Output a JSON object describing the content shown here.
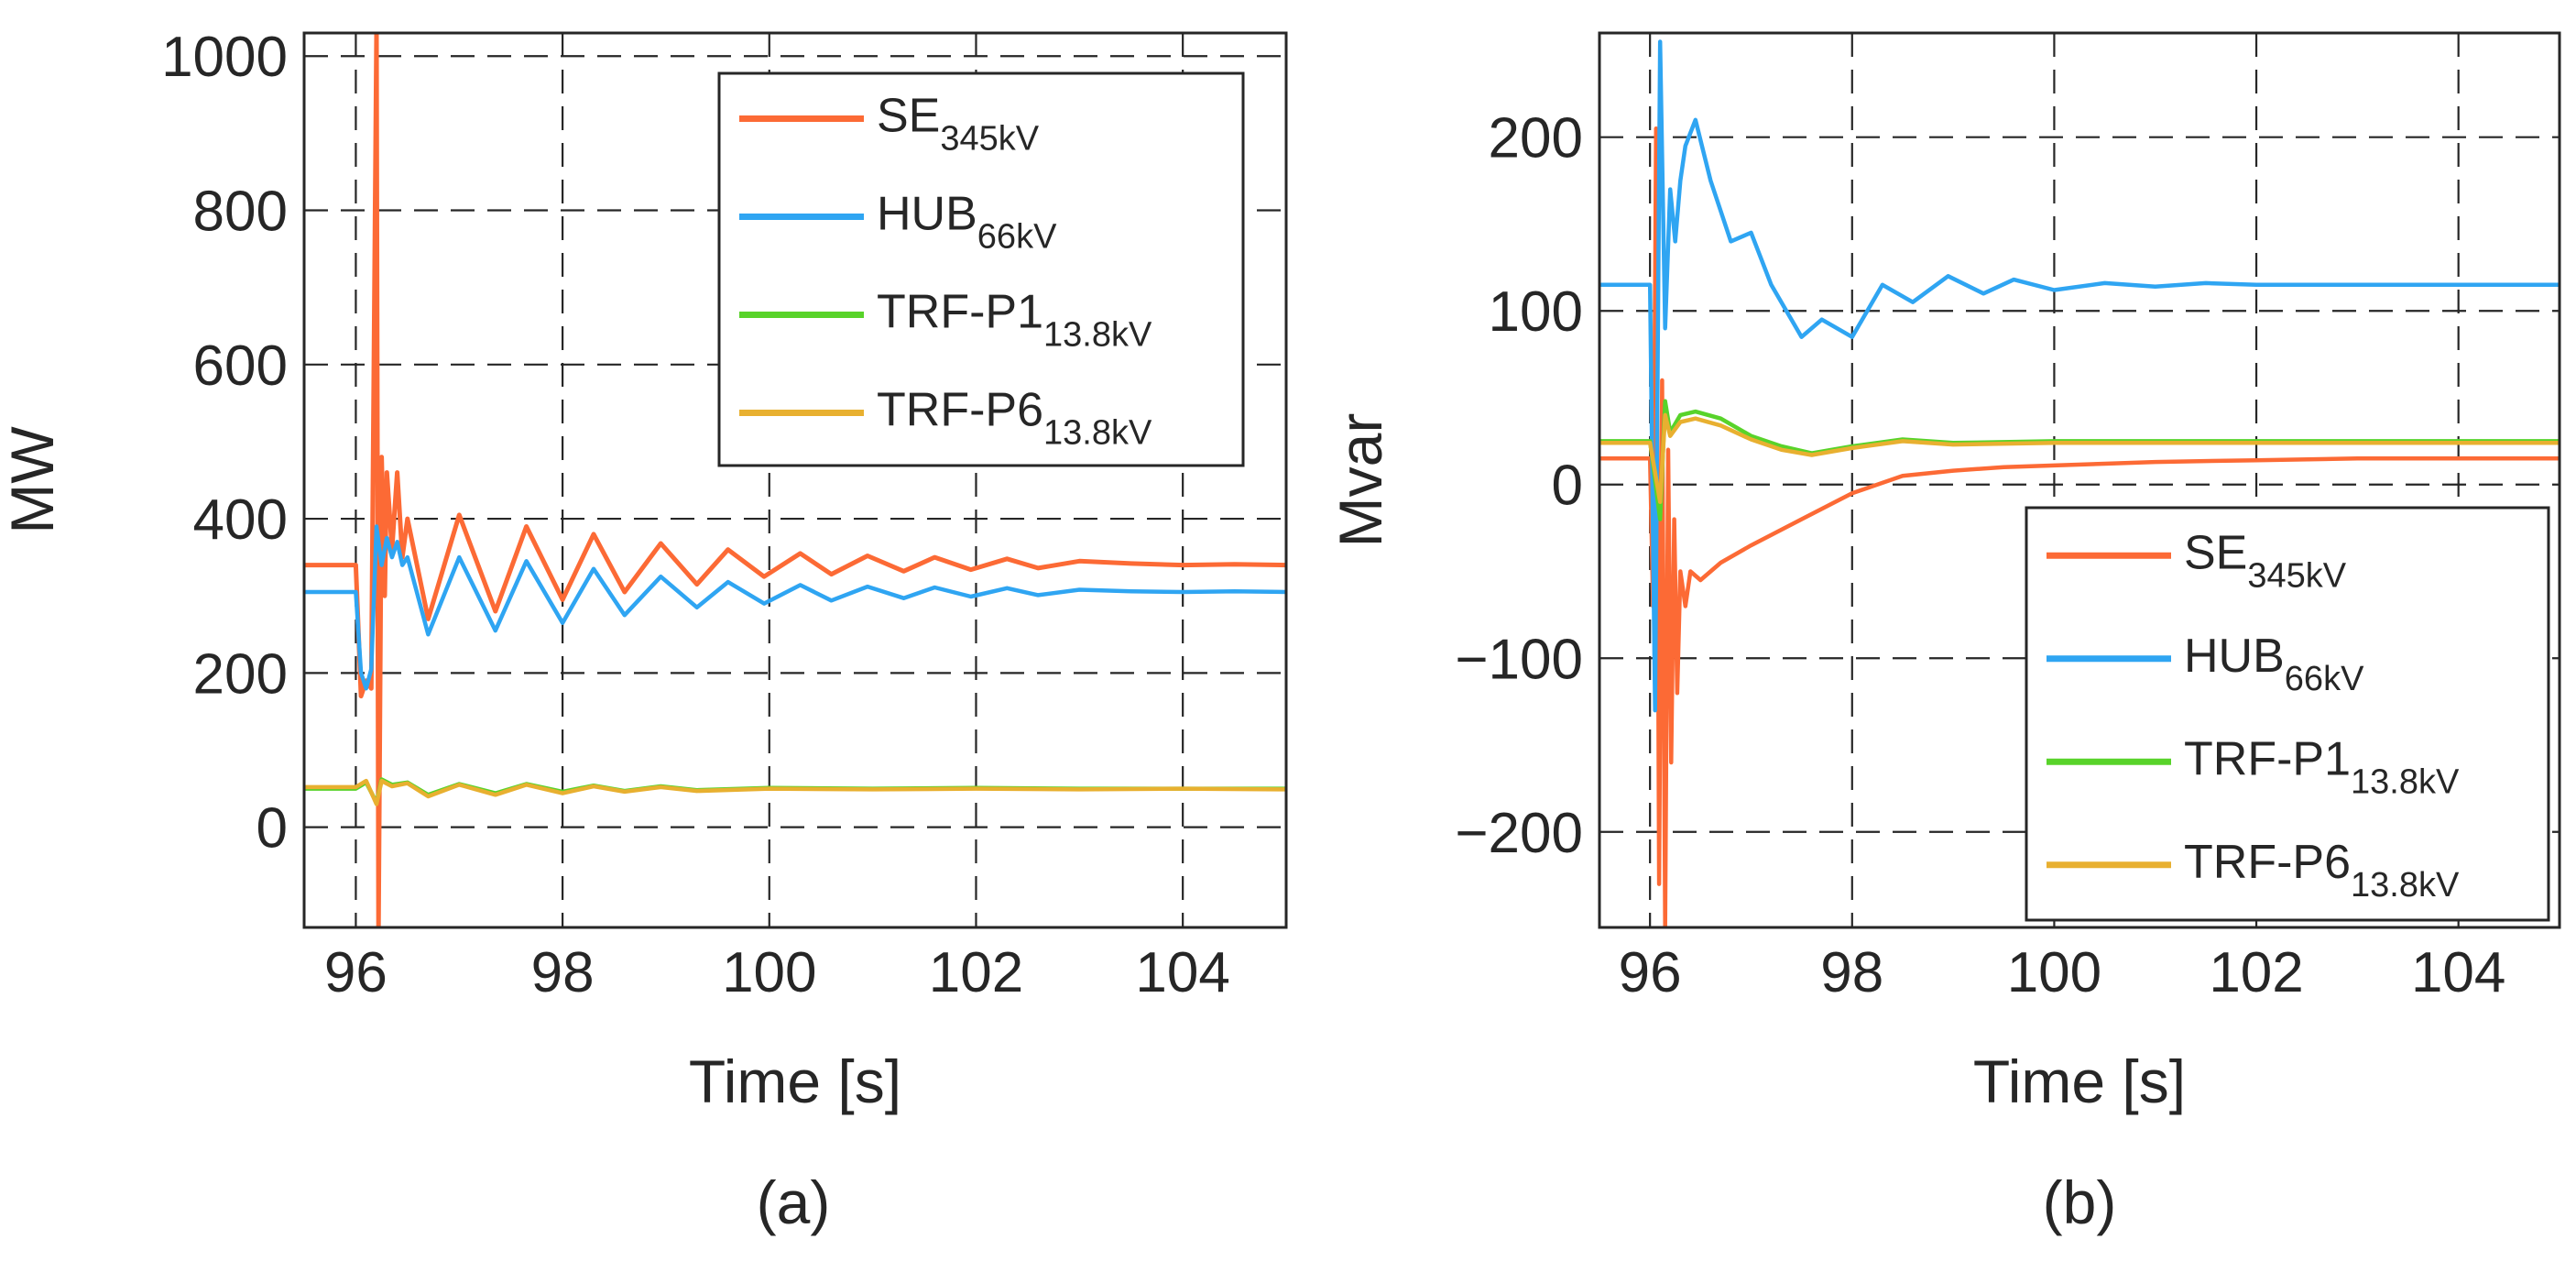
{
  "chart_data": [
    {
      "type": "line",
      "panel_label": "(a)",
      "xlabel": "Time [s]",
      "ylabel": "MW",
      "xlim": [
        95.5,
        105
      ],
      "ylim": [
        -130,
        1030
      ],
      "xticks": [
        96,
        98,
        100,
        102,
        104
      ],
      "xtick_labels": [
        "96",
        "98",
        "100",
        "102",
        "104"
      ],
      "yticks": [
        0,
        200,
        400,
        600,
        800,
        1000
      ],
      "ytick_labels": [
        "0",
        "200",
        "400",
        "600",
        "800",
        "1000"
      ],
      "grid": true,
      "legend_position": "top-right",
      "series": [
        {
          "name": "SE",
          "name_sub": "345kV",
          "color": "#fc6a35",
          "x": [
            95.5,
            96.0,
            96.05,
            96.1,
            96.15,
            96.2,
            96.22,
            96.25,
            96.28,
            96.3,
            96.35,
            96.4,
            96.45,
            96.5,
            96.7,
            97.0,
            97.35,
            97.65,
            98.0,
            98.3,
            98.6,
            98.95,
            99.3,
            99.6,
            99.95,
            100.3,
            100.6,
            100.95,
            101.3,
            101.6,
            101.95,
            102.3,
            102.6,
            103.0,
            103.5,
            104.0,
            104.5,
            105.0
          ],
          "y": [
            340,
            340,
            170,
            190,
            180,
            1030,
            -130,
            480,
            300,
            460,
            360,
            460,
            350,
            400,
            270,
            405,
            280,
            390,
            295,
            380,
            305,
            368,
            315,
            360,
            325,
            355,
            328,
            352,
            332,
            350,
            334,
            348,
            336,
            345,
            342,
            340,
            341,
            340
          ]
        },
        {
          "name": "HUB",
          "name_sub": "66kV",
          "color": "#2fa5f2",
          "x": [
            95.5,
            96.0,
            96.05,
            96.1,
            96.15,
            96.2,
            96.25,
            96.3,
            96.35,
            96.4,
            96.45,
            96.5,
            96.7,
            97.0,
            97.35,
            97.65,
            98.0,
            98.3,
            98.6,
            98.95,
            99.3,
            99.6,
            99.95,
            100.3,
            100.6,
            100.95,
            101.3,
            101.6,
            101.95,
            102.3,
            102.6,
            103.0,
            103.5,
            104.0,
            104.5,
            105.0
          ],
          "y": [
            305,
            305,
            200,
            180,
            205,
            390,
            340,
            375,
            350,
            370,
            340,
            350,
            250,
            350,
            255,
            345,
            265,
            335,
            275,
            325,
            285,
            318,
            290,
            314,
            294,
            312,
            297,
            311,
            299,
            310,
            301,
            308,
            306,
            305,
            306,
            305
          ]
        },
        {
          "name": "TRF-P1",
          "name_sub": "13.8kV",
          "color": "#58d32a",
          "x": [
            95.5,
            96.0,
            96.1,
            96.2,
            96.25,
            96.35,
            96.5,
            96.7,
            97.0,
            97.35,
            97.65,
            98.0,
            98.3,
            98.6,
            98.95,
            99.3,
            100.0,
            101.0,
            102.0,
            103.0,
            104.0,
            105.0
          ],
          "y": [
            50,
            50,
            58,
            32,
            62,
            55,
            58,
            42,
            56,
            44,
            56,
            46,
            54,
            47,
            53,
            48,
            51,
            50,
            51,
            50,
            50,
            50
          ]
        },
        {
          "name": "TRF-P6",
          "name_sub": "13.8kV",
          "color": "#e8b030",
          "x": [
            95.5,
            96.0,
            96.1,
            96.2,
            96.25,
            96.35,
            96.5,
            96.7,
            97.0,
            97.35,
            97.65,
            98.0,
            98.3,
            98.6,
            98.95,
            99.3,
            100.0,
            101.0,
            102.0,
            103.0,
            104.0,
            105.0
          ],
          "y": [
            52,
            52,
            60,
            30,
            60,
            53,
            57,
            40,
            55,
            42,
            55,
            44,
            53,
            46,
            52,
            47,
            50,
            49,
            50,
            49,
            50,
            49
          ]
        }
      ]
    },
    {
      "type": "line",
      "panel_label": "(b)",
      "xlabel": "Time [s]",
      "ylabel": "Mvar",
      "xlim": [
        95.5,
        105
      ],
      "ylim": [
        -255,
        260
      ],
      "xticks": [
        96,
        98,
        100,
        102,
        104
      ],
      "xtick_labels": [
        "96",
        "98",
        "100",
        "102",
        "104"
      ],
      "yticks": [
        -200,
        -100,
        0,
        100,
        200
      ],
      "ytick_labels": [
        "−200",
        "−100",
        "0",
        "100",
        "200"
      ],
      "grid": true,
      "legend_position": "bottom-right",
      "series": [
        {
          "name": "SE",
          "name_sub": "345kV",
          "color": "#fc6a35",
          "x": [
            95.5,
            96.0,
            96.03,
            96.06,
            96.09,
            96.12,
            96.15,
            96.18,
            96.21,
            96.24,
            96.27,
            96.3,
            96.35,
            96.4,
            96.5,
            96.7,
            97.0,
            97.5,
            98.0,
            98.5,
            99.0,
            99.5,
            100.0,
            100.5,
            101.0,
            102.0,
            103.0,
            104.0,
            105.0
          ],
          "y": [
            15,
            15,
            -70,
            205,
            -230,
            60,
            -255,
            20,
            -160,
            -20,
            -120,
            -50,
            -70,
            -50,
            -55,
            -45,
            -35,
            -20,
            -5,
            5,
            8,
            10,
            11,
            12,
            13,
            14,
            15,
            15,
            15
          ]
        },
        {
          "name": "HUB",
          "name_sub": "66kV",
          "color": "#2fa5f2",
          "x": [
            95.5,
            96.0,
            96.05,
            96.1,
            96.15,
            96.2,
            96.25,
            96.3,
            96.35,
            96.45,
            96.6,
            96.8,
            97.0,
            97.2,
            97.5,
            97.7,
            98.0,
            98.3,
            98.6,
            98.95,
            99.3,
            99.6,
            100.0,
            100.5,
            101.0,
            101.5,
            102.0,
            103.0,
            104.0,
            105.0
          ],
          "y": [
            115,
            115,
            -130,
            255,
            90,
            170,
            140,
            175,
            195,
            210,
            175,
            140,
            145,
            115,
            85,
            95,
            85,
            115,
            105,
            120,
            110,
            118,
            112,
            116,
            114,
            116,
            115,
            115,
            115,
            115
          ]
        },
        {
          "name": "TRF-P1",
          "name_sub": "13.8kV",
          "color": "#58d32a",
          "x": [
            95.5,
            96.0,
            96.1,
            96.15,
            96.2,
            96.3,
            96.45,
            96.7,
            97.0,
            97.3,
            97.6,
            98.0,
            98.5,
            99.0,
            100.0,
            101.0,
            102.0,
            103.0,
            104.0,
            105.0
          ],
          "y": [
            25,
            25,
            -20,
            48,
            30,
            40,
            42,
            38,
            28,
            22,
            18,
            22,
            26,
            24,
            25,
            25,
            25,
            25,
            25,
            25
          ]
        },
        {
          "name": "TRF-P6",
          "name_sub": "13.8kV",
          "color": "#e8b030",
          "x": [
            95.5,
            96.0,
            96.1,
            96.15,
            96.2,
            96.3,
            96.45,
            96.7,
            97.0,
            97.3,
            97.6,
            98.0,
            98.5,
            99.0,
            100.0,
            101.0,
            102.0,
            103.0,
            104.0,
            105.0
          ],
          "y": [
            24,
            24,
            -10,
            40,
            28,
            36,
            38,
            34,
            26,
            20,
            17,
            21,
            25,
            23,
            24,
            24,
            24,
            24,
            24,
            24
          ]
        }
      ]
    }
  ]
}
